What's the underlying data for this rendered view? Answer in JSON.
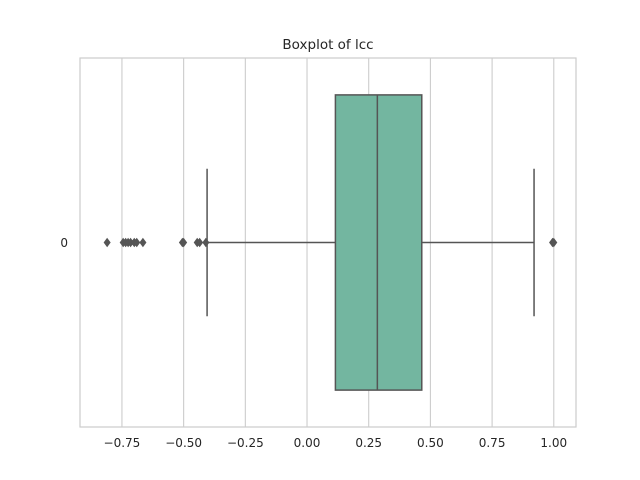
{
  "chart_data": {
    "type": "boxplot",
    "title": "Boxplot of lcc",
    "xlabel": "",
    "ylabel": "",
    "orientation": "horizontal",
    "xlim": [
      -0.92,
      1.09
    ],
    "x_ticks": [
      -0.75,
      -0.5,
      -0.25,
      0.0,
      0.25,
      0.5,
      0.75,
      1.0
    ],
    "x_tick_labels": [
      "−0.75",
      "−0.50",
      "−0.25",
      "0.00",
      "0.25",
      "0.50",
      "0.75",
      "1.00"
    ],
    "grid": "vertical",
    "categories": [
      "0"
    ],
    "boxes": [
      {
        "category": "0",
        "whisker_low": -0.405,
        "q1": 0.115,
        "median": 0.285,
        "q3": 0.465,
        "whisker_high": 0.92,
        "outliers": [
          -0.81,
          -0.745,
          -0.735,
          -0.725,
          -0.715,
          -0.7,
          -0.69,
          -0.665,
          -0.505,
          -0.5,
          -0.445,
          -0.435,
          -0.41,
          0.995,
          1.0
        ]
      }
    ],
    "box_color": "#73b6a0",
    "line_color": "#555555"
  }
}
